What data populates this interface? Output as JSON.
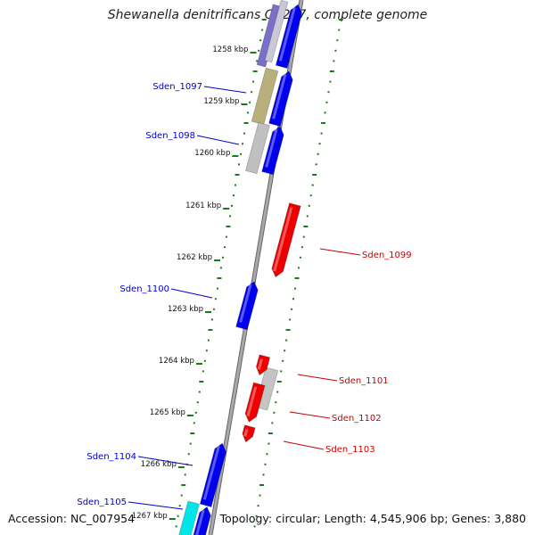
{
  "title": "Shewanella denitrificans OS217, complete genome",
  "footer": {
    "accession": "Accession: NC_007954",
    "topology": "Topology: circular; Length: 4,545,906 bp; Genes: 3,880"
  },
  "colors": {
    "forward_gene": "#0000ee",
    "reverse_gene": "#ee0000",
    "backbone": "#8a8a8a",
    "tick": "#1a7a1a",
    "label_left": "#0000cc",
    "label_right": "#cc0000"
  },
  "kbp_ticks": [
    "1258 kbp",
    "1259 kbp",
    "1260 kbp",
    "1261 kbp",
    "1262 kbp",
    "1263 kbp",
    "1264 kbp",
    "1265 kbp",
    "1266 kbp",
    "1267 kbp"
  ],
  "gene_labels": [
    {
      "name": "Sden_1097",
      "side": "left"
    },
    {
      "name": "Sden_1098",
      "side": "left"
    },
    {
      "name": "Sden_1099",
      "side": "right"
    },
    {
      "name": "Sden_1100",
      "side": "left"
    },
    {
      "name": "Sden_1101",
      "side": "right"
    },
    {
      "name": "Sden_1102",
      "side": "right"
    },
    {
      "name": "Sden_1103",
      "side": "right"
    },
    {
      "name": "Sden_1104",
      "side": "left"
    },
    {
      "name": "Sden_1105",
      "side": "left"
    }
  ]
}
